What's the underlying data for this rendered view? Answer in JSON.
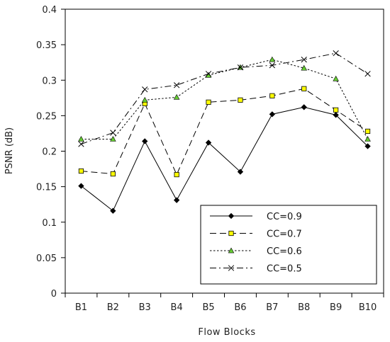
{
  "chart_data": {
    "type": "line",
    "title": "",
    "xlabel": "Flow Blocks",
    "ylabel": "PSNR (dB)",
    "categories": [
      "B1",
      "B2",
      "B3",
      "B4",
      "B5",
      "B6",
      "B7",
      "B8",
      "B9",
      "B10"
    ],
    "ylim": [
      0,
      0.4
    ],
    "yticks": [
      "0",
      "0.05",
      "0.1",
      "0.15",
      "0.2",
      "0.25",
      "0.3",
      "0.35",
      "0.4"
    ],
    "grid": false,
    "legend_position": "bottom-right",
    "series": [
      {
        "name": "CC=0.9",
        "values": [
          0.151,
          0.116,
          0.214,
          0.131,
          0.212,
          0.171,
          0.252,
          0.262,
          0.251,
          0.207
        ],
        "line_style": "solid",
        "marker": "diamond",
        "color": "#000000",
        "marker_fill": "#000000"
      },
      {
        "name": "CC=0.7",
        "values": [
          0.172,
          0.168,
          0.267,
          0.167,
          0.269,
          0.272,
          0.278,
          0.288,
          0.258,
          0.228
        ],
        "line_style": "dashed",
        "marker": "square",
        "color": "#000000",
        "marker_fill": "#ffff00"
      },
      {
        "name": "CC=0.6",
        "values": [
          0.217,
          0.217,
          0.272,
          0.276,
          0.307,
          0.318,
          0.329,
          0.317,
          0.302,
          0.217
        ],
        "line_style": "dotted",
        "marker": "triangle",
        "color": "#000000",
        "marker_fill": "#66cc33"
      },
      {
        "name": "CC=0.5",
        "values": [
          0.21,
          0.226,
          0.287,
          0.293,
          0.309,
          0.318,
          0.321,
          0.329,
          0.338,
          0.309
        ],
        "line_style": "dashdot",
        "marker": "x",
        "color": "#000000",
        "marker_fill": "none"
      }
    ]
  }
}
